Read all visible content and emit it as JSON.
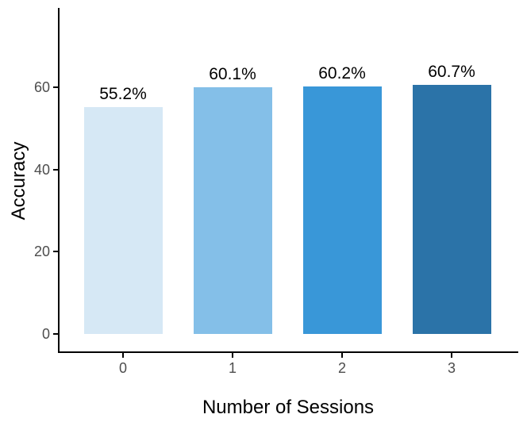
{
  "figure": {
    "background": "#FFFFFF",
    "axis_line_color": "#000000",
    "tick_label_color": "#4D4D4D",
    "axis_title_color": "#000000"
  },
  "chart_data": {
    "type": "bar",
    "title": "",
    "xlabel": "Number of Sessions",
    "ylabel": "Accuracy",
    "categories": [
      "0",
      "1",
      "2",
      "3"
    ],
    "values": [
      55.2,
      60.1,
      60.2,
      60.7
    ],
    "bar_labels": [
      "55.2%",
      "60.1%",
      "60.2%",
      "60.7%"
    ],
    "bar_colors": [
      "#D6E8F5",
      "#84BFE8",
      "#3997D8",
      "#2B73A8"
    ],
    "yticks": [
      0,
      20,
      40,
      60
    ],
    "ylim": [
      0,
      80
    ],
    "grid": false,
    "legend": "none",
    "layout_hints": {
      "axis_style": "classic-no-grid",
      "bars_float_above_axis_line": true,
      "value_labels_position": "above-bar"
    }
  }
}
